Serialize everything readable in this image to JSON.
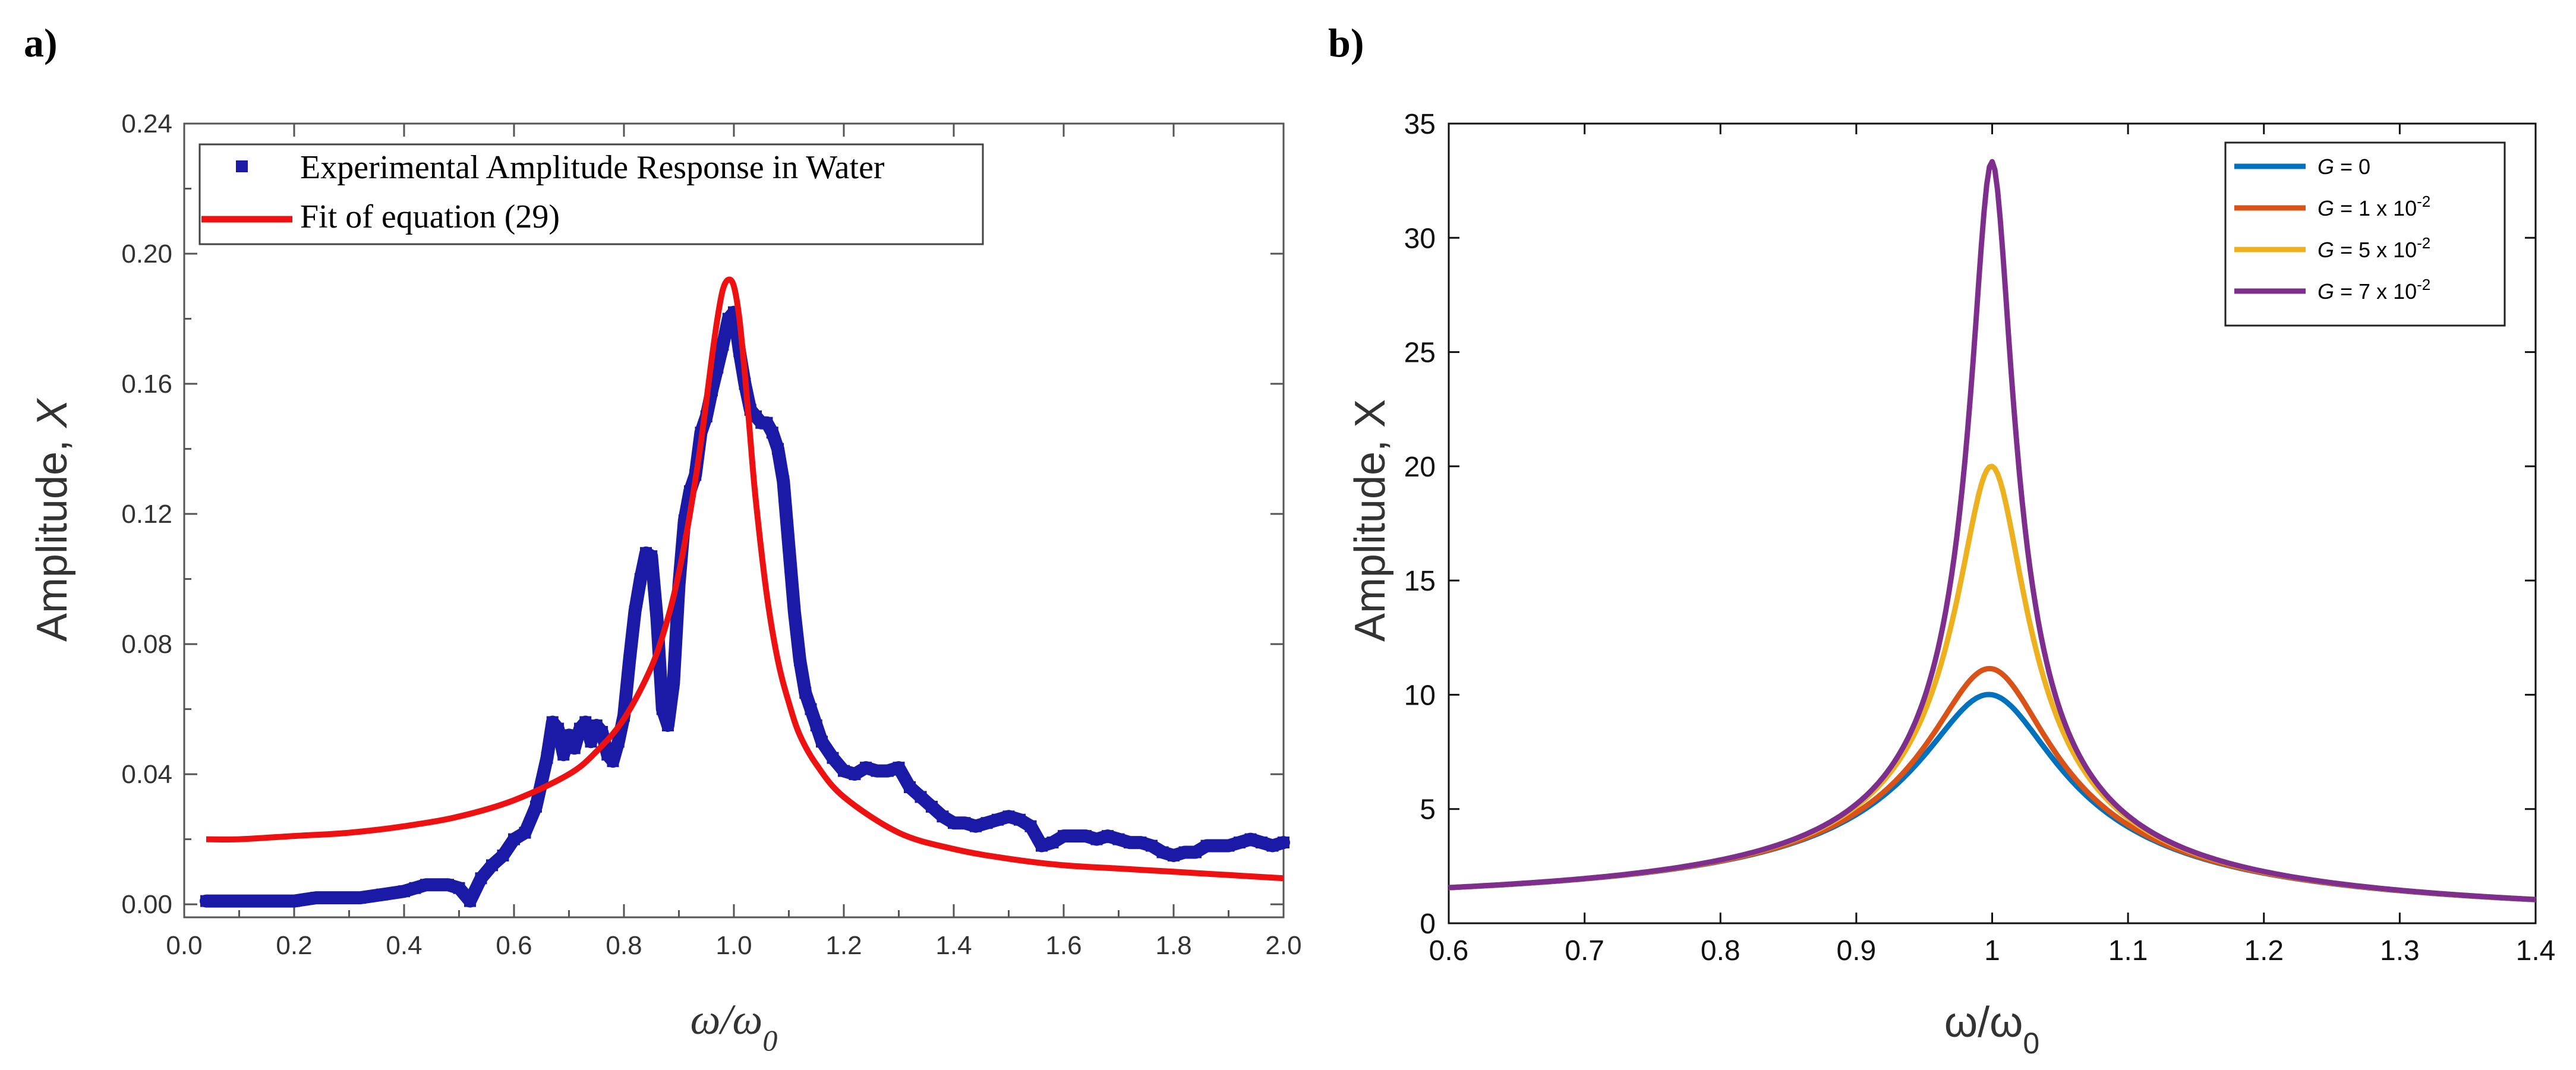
{
  "chart_data": [
    {
      "panel_label": "a)",
      "type": "scatter",
      "title": "",
      "xlabel": {
        "main": "ω/ω",
        "sub": "0"
      },
      "ylabel": {
        "main": "Amplitude, ",
        "var": "X"
      },
      "xlim": [
        0.0,
        2.0
      ],
      "ylim": [
        -0.004,
        0.24
      ],
      "xticks": [
        "0.0",
        "0.2",
        "0.4",
        "0.6",
        "0.8",
        "1.0",
        "1.2",
        "1.4",
        "1.6",
        "1.8",
        "2.0"
      ],
      "yticks": [
        "0.00",
        "0.04",
        "0.08",
        "0.12",
        "0.16",
        "0.20",
        "0.24"
      ],
      "legend_position": "top-left",
      "series": [
        {
          "name": "Experimental Amplitude Response in Water",
          "kind": "markers",
          "color": "#1a1aa6",
          "x": [
            0.04,
            0.08,
            0.12,
            0.16,
            0.2,
            0.24,
            0.28,
            0.32,
            0.36,
            0.4,
            0.42,
            0.44,
            0.46,
            0.48,
            0.5,
            0.52,
            0.54,
            0.56,
            0.58,
            0.6,
            0.62,
            0.64,
            0.66,
            0.67,
            0.68,
            0.69,
            0.7,
            0.71,
            0.72,
            0.73,
            0.74,
            0.75,
            0.76,
            0.77,
            0.78,
            0.79,
            0.8,
            0.81,
            0.82,
            0.83,
            0.84,
            0.85,
            0.86,
            0.87,
            0.88,
            0.89,
            0.9,
            0.91,
            0.92,
            0.93,
            0.94,
            0.95,
            0.96,
            0.97,
            0.98,
            0.99,
            1.0,
            1.01,
            1.02,
            1.03,
            1.04,
            1.05,
            1.06,
            1.07,
            1.08,
            1.09,
            1.1,
            1.11,
            1.12,
            1.13,
            1.14,
            1.15,
            1.16,
            1.18,
            1.2,
            1.22,
            1.24,
            1.26,
            1.28,
            1.3,
            1.32,
            1.34,
            1.36,
            1.38,
            1.4,
            1.42,
            1.44,
            1.46,
            1.48,
            1.5,
            1.52,
            1.54,
            1.56,
            1.58,
            1.6,
            1.62,
            1.64,
            1.66,
            1.68,
            1.7,
            1.72,
            1.74,
            1.76,
            1.78,
            1.8,
            1.82,
            1.84,
            1.86,
            1.88,
            1.9,
            1.92,
            1.94,
            1.96,
            1.98,
            2.0
          ],
          "y": [
            0.001,
            0.001,
            0.001,
            0.001,
            0.001,
            0.002,
            0.002,
            0.002,
            0.003,
            0.004,
            0.005,
            0.006,
            0.006,
            0.006,
            0.005,
            0.001,
            0.008,
            0.012,
            0.015,
            0.02,
            0.022,
            0.03,
            0.045,
            0.056,
            0.054,
            0.046,
            0.052,
            0.048,
            0.054,
            0.056,
            0.05,
            0.055,
            0.053,
            0.046,
            0.044,
            0.05,
            0.058,
            0.075,
            0.09,
            0.1,
            0.108,
            0.107,
            0.088,
            0.06,
            0.055,
            0.068,
            0.098,
            0.118,
            0.127,
            0.132,
            0.145,
            0.15,
            0.158,
            0.165,
            0.172,
            0.18,
            0.182,
            0.17,
            0.16,
            0.152,
            0.15,
            0.148,
            0.148,
            0.145,
            0.14,
            0.13,
            0.11,
            0.09,
            0.075,
            0.065,
            0.06,
            0.055,
            0.05,
            0.045,
            0.041,
            0.04,
            0.042,
            0.041,
            0.041,
            0.042,
            0.036,
            0.033,
            0.03,
            0.027,
            0.025,
            0.025,
            0.024,
            0.025,
            0.026,
            0.027,
            0.026,
            0.024,
            0.018,
            0.019,
            0.021,
            0.021,
            0.021,
            0.02,
            0.021,
            0.02,
            0.019,
            0.019,
            0.018,
            0.016,
            0.015,
            0.016,
            0.016,
            0.018,
            0.018,
            0.018,
            0.019,
            0.02,
            0.019,
            0.018,
            0.019
          ]
        },
        {
          "name": "Fit of equation (29)",
          "kind": "line",
          "color": "#ee1111",
          "x": [
            0.04,
            0.1,
            0.2,
            0.3,
            0.4,
            0.5,
            0.6,
            0.7,
            0.75,
            0.8,
            0.85,
            0.88,
            0.9,
            0.92,
            0.94,
            0.96,
            0.97,
            0.98,
            0.99,
            1.0,
            1.01,
            1.02,
            1.03,
            1.04,
            1.06,
            1.08,
            1.1,
            1.12,
            1.15,
            1.2,
            1.3,
            1.4,
            1.5,
            1.6,
            1.7,
            1.8,
            1.9,
            2.0
          ],
          "y": [
            0.02,
            0.02,
            0.021,
            0.022,
            0.024,
            0.027,
            0.032,
            0.04,
            0.047,
            0.057,
            0.073,
            0.088,
            0.102,
            0.12,
            0.142,
            0.168,
            0.18,
            0.189,
            0.192,
            0.19,
            0.18,
            0.163,
            0.143,
            0.124,
            0.095,
            0.075,
            0.062,
            0.052,
            0.043,
            0.033,
            0.022,
            0.017,
            0.014,
            0.012,
            0.011,
            0.01,
            0.009,
            0.008
          ]
        }
      ]
    },
    {
      "panel_label": "b)",
      "type": "line",
      "title": "",
      "xlabel": {
        "main": "ω/ω",
        "sub": "0"
      },
      "ylabel": {
        "main": "Amplitude,  ",
        "var": "X"
      },
      "xlim": [
        0.6,
        1.4
      ],
      "ylim": [
        0,
        35
      ],
      "xticks": [
        "0.6",
        "0.7",
        "0.8",
        "0.9",
        "1",
        "1.1",
        "1.2",
        "1.3",
        "1.4"
      ],
      "yticks": [
        "0",
        "5",
        "10",
        "15",
        "20",
        "25",
        "30",
        "35"
      ],
      "legend_position": "top-right",
      "series": [
        {
          "name": "G = 0",
          "legend": {
            "var": "G",
            "text": " = 0",
            "sup": ""
          },
          "color": "#0072bd",
          "zeta": 0.05
        },
        {
          "name": "G = 1 x 10-2",
          "legend": {
            "var": "G",
            "text": " = 1 x 10",
            "sup": "-2"
          },
          "color": "#d95319",
          "zeta": 0.0449
        },
        {
          "name": "G = 5 x 10-2",
          "legend": {
            "var": "G",
            "text": " = 5 x 10",
            "sup": "-2"
          },
          "color": "#edb120",
          "zeta": 0.025
        },
        {
          "name": "G = 7 x 10-2",
          "legend": {
            "var": "G",
            "text": " = 7 x 10",
            "sup": "-2"
          },
          "color": "#7e2f8e",
          "zeta": 0.015
        }
      ]
    }
  ]
}
